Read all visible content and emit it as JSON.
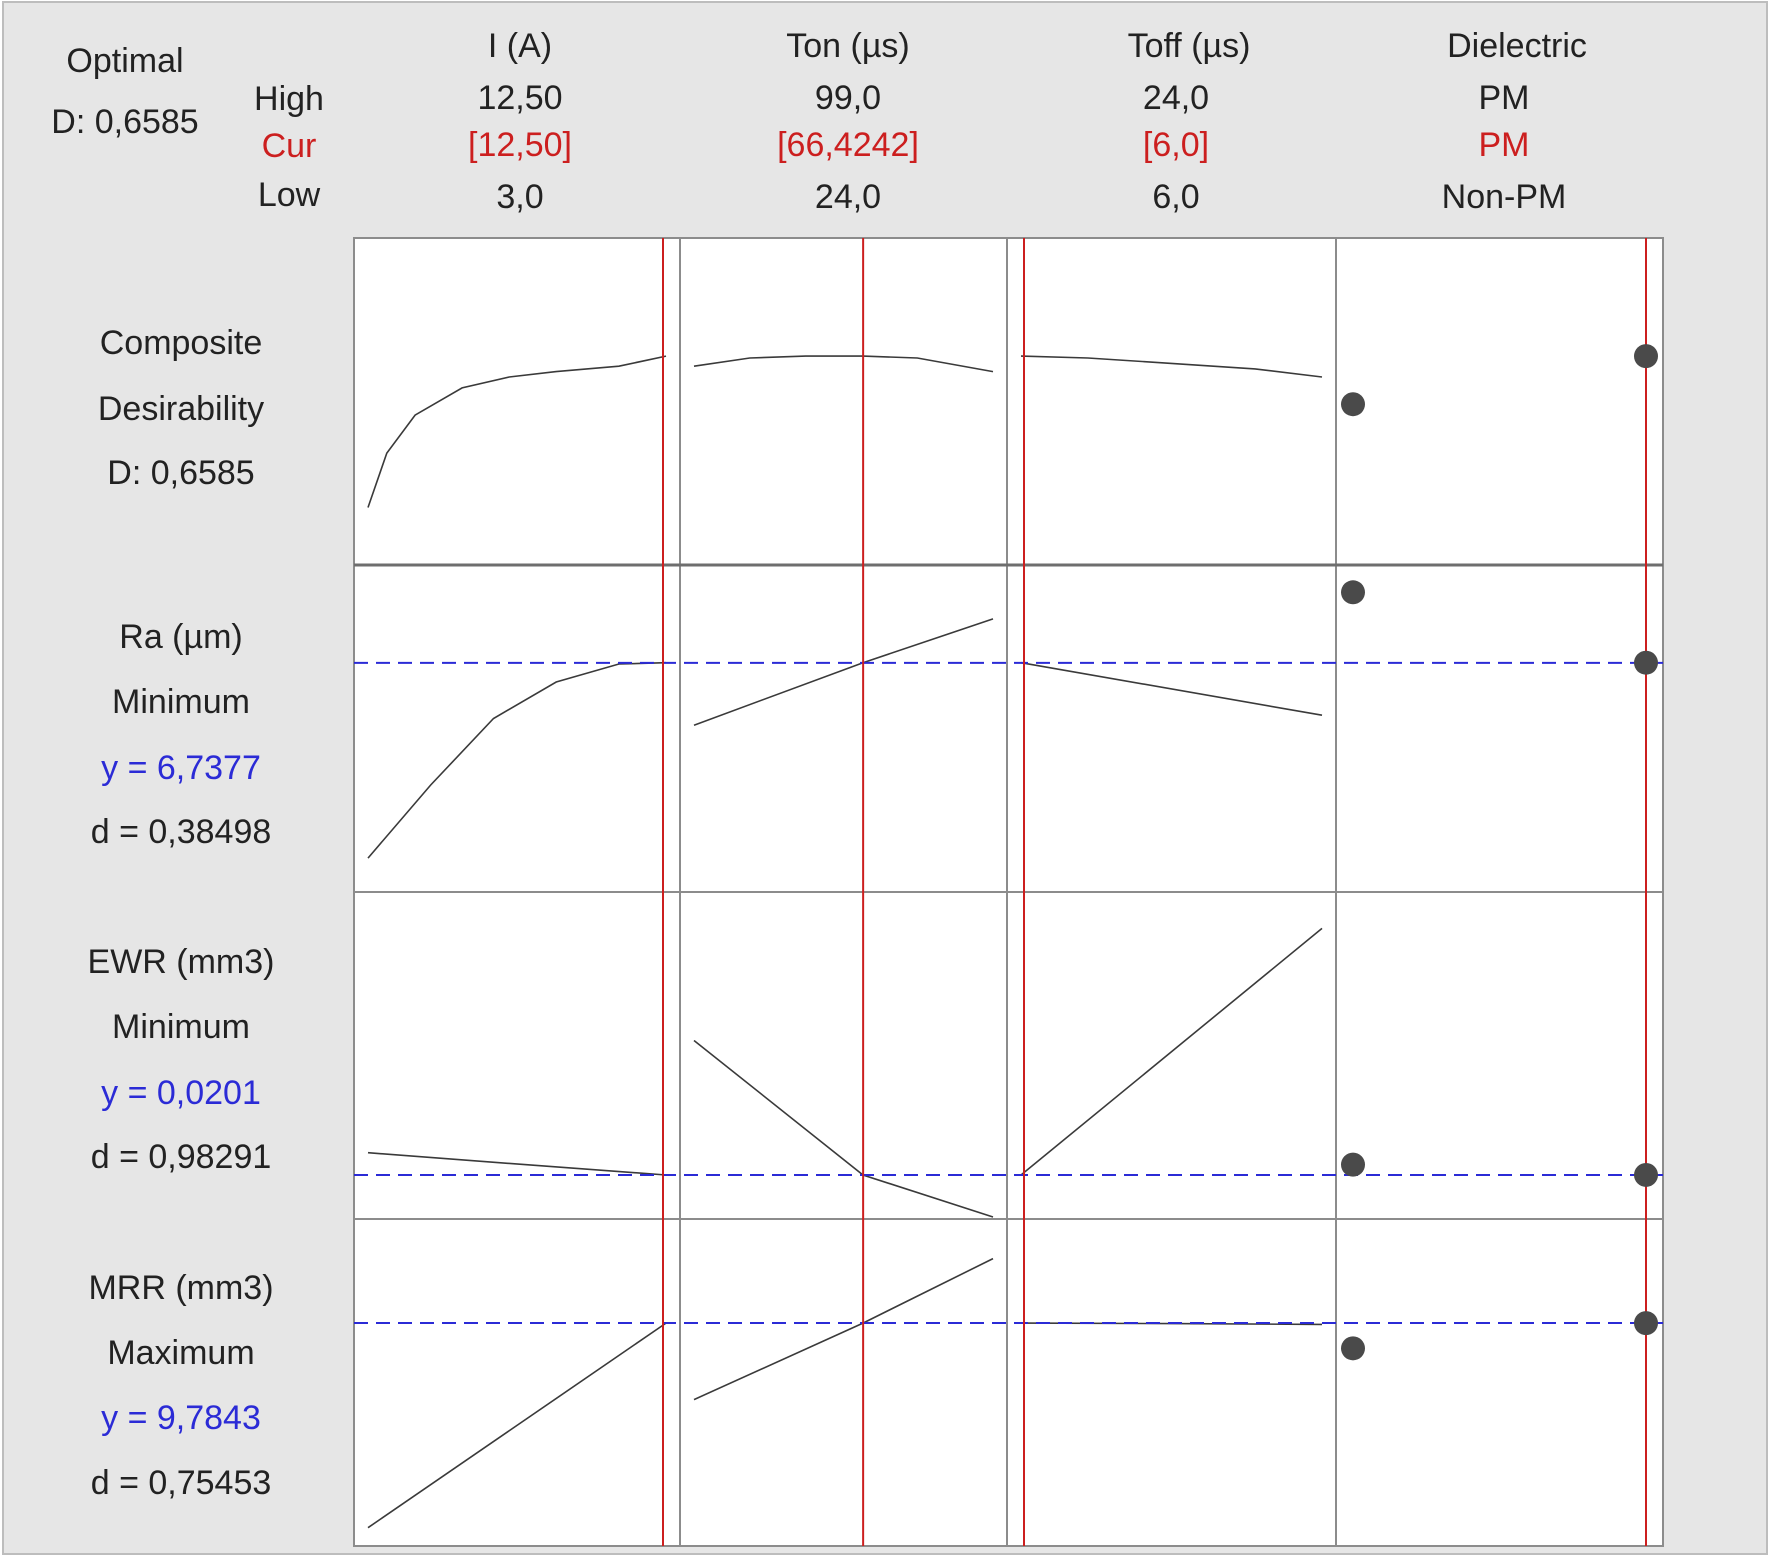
{
  "optimal": {
    "label": "Optimal",
    "d_text": "D: 0,6585"
  },
  "row_labels": {
    "high": "High",
    "cur": "Cur",
    "low": "Low"
  },
  "colors": {
    "cur": "#cc1f1f",
    "target": "#2b2bd6",
    "curve": "#3a3a3a",
    "point": "#4a4a4a",
    "panel_border": "#8c8c8c",
    "background": "#e6e6e6"
  },
  "factors": [
    {
      "name": "I (A)",
      "high": "12,50",
      "cur": "[12,50]",
      "low": "3,0"
    },
    {
      "name": "Ton (µs)",
      "high": "99,0",
      "cur": "[66,4242]",
      "low": "24,0"
    },
    {
      "name": "Toff  (µs)",
      "high": "24,0",
      "cur": "[6,0]",
      "low": "6,0"
    },
    {
      "name": "Dielectric",
      "high": "PM",
      "cur": "PM",
      "low": "Non-PM"
    }
  ],
  "responses": [
    {
      "name": "Composite",
      "goal": "Desirability",
      "y_text": "",
      "d_text": "D: 0,6585"
    },
    {
      "name": "Ra (µm)",
      "goal": "Minimum",
      "y_text": "y = 6,7377",
      "d_text": "d = 0,38498"
    },
    {
      "name": "EWR (mm3)",
      "goal": "Minimum",
      "y_text": "y = 0,0201",
      "d_text": "d = 0,98291"
    },
    {
      "name": "MRR (mm3)",
      "goal": "Maximum",
      "y_text": "y = 9,7843",
      "d_text": "d = 0,75453"
    }
  ],
  "chart_data": {
    "type": "line",
    "title": "",
    "x_ranges": [
      [
        3.0,
        12.5
      ],
      [
        24.0,
        99.0
      ],
      [
        6.0,
        24.0
      ],
      [
        "Non-PM",
        "PM"
      ]
    ],
    "current_settings": [
      12.5,
      66.4242,
      6.0,
      "PM"
    ],
    "series": [
      {
        "name": "Composite Desirability",
        "current": 0.6585,
        "ylim": [
          0.3,
          0.85
        ],
        "curves": [
          [
            [
              3.0,
              0.38
            ],
            [
              3.6,
              0.48
            ],
            [
              4.5,
              0.55
            ],
            [
              6.0,
              0.6
            ],
            [
              7.5,
              0.62
            ],
            [
              9.0,
              0.63
            ],
            [
              11.0,
              0.64
            ],
            [
              12.5,
              0.6585
            ]
          ],
          [
            [
              24.0,
              0.64
            ],
            [
              38.0,
              0.655
            ],
            [
              52.0,
              0.6585
            ],
            [
              66.4,
              0.6585
            ],
            [
              80.0,
              0.655
            ],
            [
              99.0,
              0.63
            ]
          ],
          [
            [
              6.0,
              0.6585
            ],
            [
              10.0,
              0.655
            ],
            [
              15.0,
              0.645
            ],
            [
              20.0,
              0.635
            ],
            [
              24.0,
              0.62
            ]
          ]
        ],
        "dielectric_points": [
          0.57,
          0.6585
        ]
      },
      {
        "name": "Ra (µm)",
        "current": 6.7377,
        "ylim": [
          3.5,
          8.0
        ],
        "curves": [
          [
            [
              3.0,
              3.8
            ],
            [
              5.0,
              4.9
            ],
            [
              7.0,
              5.9
            ],
            [
              9.0,
              6.45
            ],
            [
              11.0,
              6.72
            ],
            [
              12.5,
              6.74
            ]
          ],
          [
            [
              24.0,
              5.8
            ],
            [
              66.4,
              6.74
            ],
            [
              99.0,
              7.4
            ]
          ],
          [
            [
              6.0,
              6.74
            ],
            [
              24.0,
              5.95
            ]
          ]
        ],
        "dielectric_points": [
          7.8,
          6.74
        ]
      },
      {
        "name": "EWR (mm3)",
        "current": 0.0201,
        "ylim": [
          0.0,
          0.2
        ],
        "curves": [
          [
            [
              3.0,
              0.035
            ],
            [
              8.0,
              0.027
            ],
            [
              12.5,
              0.0201
            ]
          ],
          [
            [
              24.0,
              0.11
            ],
            [
              66.4,
              0.0201
            ],
            [
              99.0,
              -0.03
            ]
          ],
          [
            [
              6.0,
              0.0201
            ],
            [
              24.0,
              0.185
            ]
          ]
        ],
        "dielectric_points": [
          0.027,
          0.0201
        ]
      },
      {
        "name": "MRR (mm3)",
        "current": 9.7843,
        "ylim": [
          0.0,
          14.0
        ],
        "curves": [
          [
            [
              3.0,
              0.2
            ],
            [
              12.5,
              9.78
            ]
          ],
          [
            [
              24.0,
              6.2
            ],
            [
              66.4,
              9.78
            ],
            [
              99.0,
              12.8
            ]
          ],
          [
            [
              6.0,
              9.78
            ],
            [
              15.0,
              9.76
            ],
            [
              24.0,
              9.72
            ]
          ]
        ],
        "dielectric_points": [
          8.6,
          9.78
        ]
      }
    ]
  }
}
